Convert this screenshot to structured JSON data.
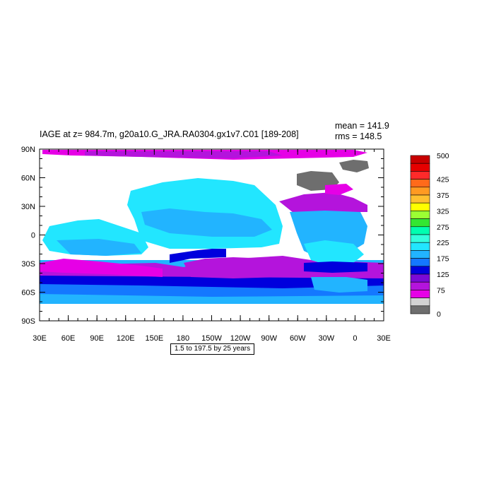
{
  "title": "IAGE at z= 984.7m, g20a10.G_JRA.RA0304.gx1v7.C01 [189-208]",
  "stats": {
    "mean": "mean = 141.9",
    "rms": "rms = 148.5"
  },
  "contour_info": "1.5 to 197.5 by 25 years",
  "lat_labels": [
    "90N",
    "60N",
    "30N",
    "0",
    "30S",
    "60S",
    "90S"
  ],
  "lon_labels": [
    "30E",
    "60E",
    "90E",
    "120E",
    "150E",
    "180",
    "150W",
    "120W",
    "90W",
    "60W",
    "30W",
    "0",
    "30E"
  ],
  "colorbar": {
    "labels": [
      "500",
      "425",
      "375",
      "325",
      "275",
      "225",
      "175",
      "125",
      "75",
      "0"
    ],
    "colors": [
      "#c80000",
      "#e60000",
      "#ff2a2a",
      "#ff6a1a",
      "#ff9a22",
      "#ffc030",
      "#ffff00",
      "#9bff33",
      "#33e633",
      "#00ffb0",
      "#33ffdd",
      "#22e6ff",
      "#22b4ff",
      "#1478ff",
      "#0000dd",
      "#7a0ad6",
      "#b414dc",
      "#e600e6",
      "#d2d2d2",
      "#6e6e6e"
    ]
  },
  "palette": {
    "land": "#ffffff",
    "purple": "#b414dc",
    "magenta": "#e600e6",
    "blue": "#0000dd",
    "midblue": "#1478ff",
    "lightblue": "#22b4ff",
    "cyan": "#22e6ff",
    "gray": "#6e6e6e",
    "lightgray": "#d2d2d2"
  }
}
